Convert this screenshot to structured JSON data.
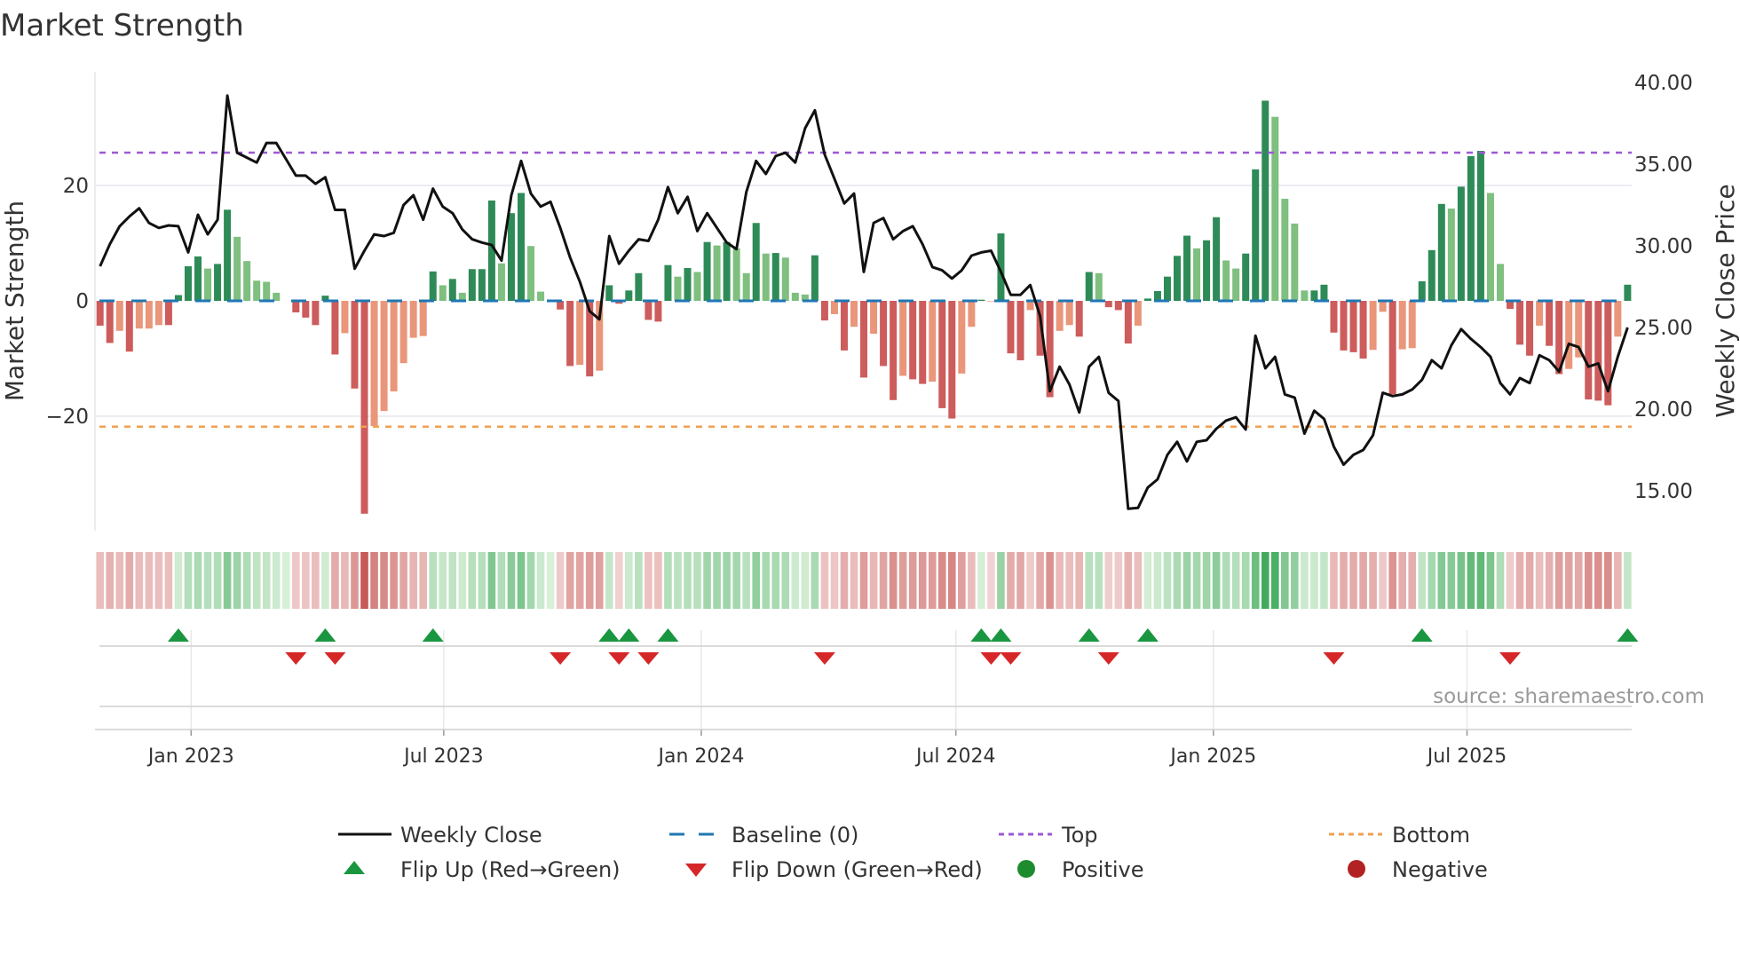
{
  "chart_data": {
    "type": "bar",
    "title": "Market Strength",
    "ylabel": "Market Strength",
    "y2label": "Weekly Close Price",
    "ylim": [
      -40,
      40
    ],
    "y2lim": [
      13,
      40.5
    ],
    "yticks": [
      {
        "v": 20,
        "label": "20"
      },
      {
        "v": 0,
        "label": "0"
      },
      {
        "v": -20,
        "label": "−20"
      }
    ],
    "y2ticks": [
      "40.00",
      "35.00",
      "30.00",
      "25.00",
      "20.00",
      "15.00"
    ],
    "y2tick_values": [
      40,
      35,
      30,
      25,
      20,
      15
    ],
    "xticks": [
      {
        "week": 9.3,
        "label": "Jan 2023"
      },
      {
        "week": 35.1,
        "label": "Jul 2023"
      },
      {
        "week": 61.4,
        "label": "Jan 2024"
      },
      {
        "week": 87.4,
        "label": "Jul 2024"
      },
      {
        "week": 113.7,
        "label": "Jan 2025"
      },
      {
        "week": 139.6,
        "label": "Jul 2025"
      }
    ],
    "top_level": 25.7,
    "bottom_level": -21.8,
    "baseline": 0,
    "strength": [
      -4.3,
      -7.3,
      -5.2,
      -8.8,
      -4.8,
      -4.8,
      -4.2,
      -4.2,
      1.0,
      6.0,
      7.7,
      5.6,
      6.4,
      15.8,
      11.1,
      6.9,
      3.5,
      3.3,
      1.4,
      0,
      -2.0,
      -2.9,
      -4.2,
      0.9,
      -9.3,
      -5.6,
      -15.2,
      -36.9,
      -21.7,
      -19.1,
      -15.7,
      -10.8,
      -6.4,
      -6.1,
      5.1,
      2.7,
      3.8,
      1.4,
      5.5,
      5.5,
      17.4,
      6.5,
      15.2,
      18.7,
      9.5,
      1.6,
      0,
      -1.5,
      -11.3,
      -11.1,
      -13.1,
      -12.1,
      2.7,
      -0.5,
      1.8,
      4.8,
      -3.3,
      -3.6,
      6.2,
      4.2,
      5.7,
      5.0,
      10.2,
      9.6,
      10.2,
      9.1,
      4.8,
      13.5,
      8.2,
      8.3,
      7.5,
      1.4,
      1.1,
      7.9,
      -3.4,
      -2.3,
      -8.6,
      -4.5,
      -13.3,
      -5.7,
      -11.3,
      -17.2,
      -13.0,
      -13.6,
      -14.4,
      -14.0,
      -18.6,
      -20.4,
      -12.6,
      -4.5,
      0.2,
      -0.1,
      11.7,
      -9.1,
      -10.3,
      -1.6,
      -9.5,
      -16.7,
      -5.2,
      -4.2,
      -6.2,
      5.0,
      4.8,
      -1.1,
      -1.6,
      -7.4,
      -4.3,
      0.4,
      1.7,
      4.2,
      7.8,
      11.3,
      9.1,
      10.5,
      14.5,
      7.0,
      5.6,
      8.2,
      22.8,
      34.7,
      31.9,
      17.7,
      13.4,
      1.8,
      1.8,
      2.8,
      -5.5,
      -8.6,
      -8.9,
      -10.0,
      -8.5,
      -1.9,
      -16.2,
      -8.4,
      -8.2,
      3.4,
      8.8,
      16.8,
      16.0,
      19.8,
      25.1,
      26.0,
      18.7,
      6.4,
      -1.4,
      -7.6,
      -9.5,
      -4.3,
      -7.8,
      -12.7,
      -11.8,
      -9.8,
      -17.1,
      -17.3,
      -18.1,
      -6.2,
      2.8
    ],
    "strong": "DDLDLLLDDDDLDDLLLLLLDDDDDLDDLLLLLLDLDLDDDLDDLLLDDLDLDDDDDDDLDLDLDLLDLDLLLDDLDLDLDDLDDLDDLLDLDDDLDDLLDDLDDDLDDDDDLDDLLDDDLLLLDDDDDDLLDLLDDDLDDDLLDDDLDDLLDDDLD",
    "weekly_close": [
      28.75,
      30.1,
      31.2,
      31.8,
      32.3,
      31.4,
      31.1,
      31.25,
      31.2,
      29.6,
      31.9,
      30.7,
      31.6,
      39.2,
      35.7,
      35.4,
      35.1,
      36.3,
      36.3,
      35.3,
      34.3,
      34.3,
      33.8,
      34.2,
      32.2,
      32.2,
      28.6,
      29.7,
      30.7,
      30.6,
      30.8,
      32.5,
      33.1,
      31.6,
      33.5,
      32.4,
      32.0,
      31.0,
      30.4,
      30.2,
      30.05,
      29.1,
      33.1,
      35.2,
      33.2,
      32.4,
      32.7,
      31.1,
      29.3,
      27.8,
      26.0,
      25.5,
      30.6,
      28.9,
      29.7,
      30.4,
      30.3,
      31.6,
      33.6,
      32.0,
      33.0,
      30.9,
      32.0,
      31.1,
      30.2,
      29.8,
      33.3,
      35.2,
      34.4,
      35.5,
      35.7,
      35.1,
      37.2,
      38.3,
      35.6,
      34.1,
      32.6,
      33.2,
      28.4,
      31.4,
      31.7,
      30.4,
      30.9,
      31.2,
      30.1,
      28.7,
      28.5,
      28.0,
      28.5,
      29.4,
      29.6,
      29.7,
      28.4,
      27.0,
      27.0,
      27.6,
      25.7,
      21.1,
      22.6,
      21.5,
      19.8,
      22.6,
      23.2,
      21.0,
      20.5,
      13.9,
      13.95,
      15.2,
      15.7,
      17.2,
      18.0,
      16.8,
      18.0,
      18.1,
      18.8,
      19.3,
      19.5,
      18.75,
      24.5,
      22.5,
      23.2,
      20.9,
      20.7,
      18.5,
      19.9,
      19.4,
      17.7,
      16.6,
      17.2,
      17.5,
      18.4,
      21.0,
      20.8,
      20.9,
      21.2,
      21.8,
      23.0,
      22.5,
      23.9,
      24.9,
      24.3,
      23.8,
      23.2,
      21.6,
      20.9,
      21.9,
      21.6,
      23.3,
      23.0,
      22.3,
      24.0,
      23.8,
      22.6,
      22.8,
      21.1,
      23.2,
      25.0
    ],
    "flip_up_weeks": [
      8,
      23,
      34,
      52,
      54,
      58,
      90,
      92,
      101,
      107,
      135,
      156
    ],
    "flip_down_weeks": [
      20,
      24,
      47,
      53,
      56,
      74,
      91,
      93,
      103,
      126,
      144
    ],
    "legend": {
      "weekly_close": "Weekly Close",
      "baseline": "Baseline (0)",
      "top": "Top",
      "bottom": "Bottom",
      "flip_up": "Flip Up (Red→Green)",
      "flip_down": "Flip Down (Green→Red)",
      "positive": "Positive",
      "negative": "Negative"
    },
    "legend_placement": "bottom",
    "grid": true
  },
  "source": "source: sharemaestro.com",
  "colors": {
    "green_strong": "#2e8b57",
    "green_weak": "#7fbf7f",
    "red_strong": "#cd5c5c",
    "red_weak": "#e9967a",
    "baseline": "#1f77b4",
    "top": "#9b59d6",
    "bottom": "#f0a050",
    "flip_up": "#1a9641",
    "flip_down": "#d62728",
    "positive": "#1e8c2e",
    "negative": "#b22222",
    "price": "#111111"
  }
}
